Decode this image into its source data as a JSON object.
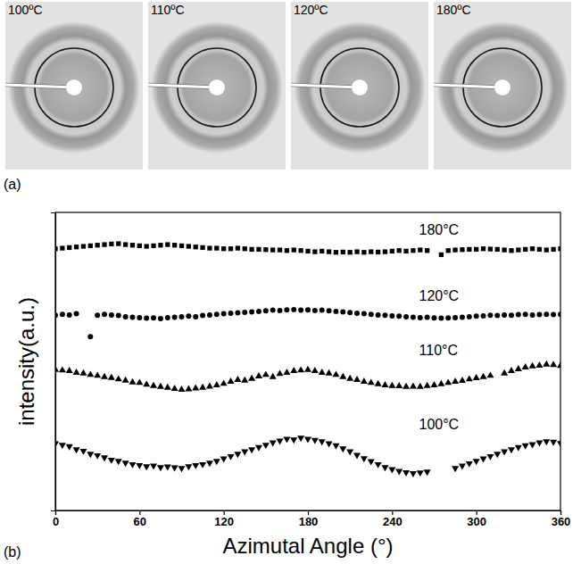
{
  "panels": [
    {
      "label": "(a)",
      "images": [
        "100ºC",
        "110ºC",
        "120ºC",
        "180ºC"
      ]
    },
    {
      "label": "(b)"
    }
  ],
  "chart_data": {
    "type": "scatter",
    "xlabel": "Azimutal Angle (°)",
    "ylabel": "intensity(a.u.)",
    "xlim": [
      0,
      360
    ],
    "xticks": [
      0,
      60,
      120,
      180,
      240,
      300,
      360
    ],
    "ylim": [
      0,
      10
    ],
    "tick_labels": "x",
    "grid": false,
    "x": [
      0,
      5,
      10,
      15,
      20,
      25,
      30,
      35,
      40,
      45,
      50,
      55,
      60,
      65,
      70,
      75,
      80,
      85,
      90,
      95,
      100,
      105,
      110,
      115,
      120,
      125,
      130,
      135,
      140,
      145,
      150,
      155,
      160,
      165,
      170,
      175,
      180,
      185,
      190,
      195,
      200,
      205,
      210,
      215,
      220,
      225,
      230,
      235,
      240,
      245,
      250,
      255,
      260,
      265,
      270,
      275,
      280,
      285,
      290,
      295,
      300,
      305,
      310,
      315,
      320,
      325,
      330,
      335,
      340,
      345,
      350,
      355,
      360
    ],
    "series": [
      {
        "name": "180°C",
        "color": "#000000",
        "marker": "square",
        "values": [
          8.78,
          8.8,
          8.82,
          8.84,
          8.86,
          8.88,
          8.9,
          8.92,
          8.94,
          8.95,
          8.92,
          8.9,
          8.88,
          8.86,
          8.88,
          8.9,
          8.92,
          8.9,
          8.88,
          8.86,
          8.84,
          8.82,
          8.8,
          8.8,
          8.78,
          8.78,
          8.8,
          8.78,
          8.76,
          8.76,
          8.75,
          8.74,
          8.74,
          8.72,
          8.74,
          8.72,
          8.7,
          8.68,
          8.7,
          8.68,
          8.66,
          8.67,
          8.66,
          8.68,
          8.66,
          8.68,
          8.67,
          8.68,
          8.7,
          8.72,
          8.7,
          8.72,
          8.74,
          8.72,
          null,
          8.58,
          8.72,
          8.74,
          8.75,
          8.76,
          8.76,
          8.78,
          8.77,
          8.76,
          8.74,
          8.72,
          8.74,
          8.76,
          8.78,
          8.76,
          8.74,
          8.76,
          8.78
        ]
      },
      {
        "name": "120°C",
        "color": "#000000",
        "marker": "circle",
        "values": [
          6.55,
          6.58,
          6.56,
          6.6,
          null,
          5.83,
          6.55,
          6.58,
          6.56,
          6.54,
          6.5,
          6.48,
          6.47,
          6.45,
          6.46,
          6.44,
          6.47,
          6.48,
          6.5,
          6.52,
          6.5,
          6.54,
          6.56,
          6.58,
          6.6,
          6.62,
          6.63,
          6.65,
          6.66,
          6.68,
          6.7,
          6.72,
          6.71,
          6.73,
          6.74,
          6.72,
          6.73,
          6.71,
          6.72,
          6.7,
          6.68,
          6.66,
          6.64,
          6.62,
          6.6,
          6.58,
          6.56,
          6.55,
          6.53,
          6.52,
          6.5,
          6.48,
          6.47,
          6.48,
          6.46,
          6.45,
          6.46,
          6.47,
          6.48,
          6.5,
          6.52,
          6.53,
          6.55,
          6.54,
          6.56,
          6.55,
          6.57,
          6.58,
          6.56,
          6.57,
          6.58,
          6.57,
          6.58
        ]
      },
      {
        "name": "110°C",
        "color": "#000000",
        "marker": "triangle-up",
        "values": [
          4.72,
          4.7,
          4.68,
          4.62,
          4.6,
          4.55,
          4.52,
          4.48,
          4.45,
          4.4,
          4.36,
          4.3,
          4.28,
          4.22,
          4.18,
          4.15,
          4.12,
          4.08,
          4.05,
          4.07,
          4.1,
          4.12,
          4.16,
          4.2,
          4.25,
          4.32,
          4.38,
          4.36,
          4.42,
          4.5,
          4.55,
          4.48,
          4.58,
          4.62,
          4.68,
          4.7,
          4.72,
          4.68,
          4.62,
          4.6,
          4.55,
          4.48,
          4.42,
          4.38,
          4.32,
          4.28,
          4.24,
          4.2,
          4.18,
          4.17,
          4.15,
          4.16,
          4.15,
          4.18,
          4.2,
          4.24,
          4.28,
          4.32,
          4.35,
          4.4,
          4.44,
          4.48,
          4.52,
          null,
          4.6,
          4.68,
          4.74,
          4.8,
          4.84,
          4.86,
          4.9,
          4.88,
          4.85
        ]
      },
      {
        "name": "100°C",
        "color": "#000000",
        "marker": "triangle-down",
        "values": [
          2.25,
          2.2,
          2.15,
          2.05,
          2.0,
          1.9,
          1.85,
          1.78,
          1.7,
          1.66,
          1.6,
          1.55,
          1.52,
          1.48,
          1.5,
          1.45,
          1.47,
          1.44,
          1.42,
          1.48,
          1.52,
          1.55,
          1.6,
          1.66,
          1.74,
          1.82,
          1.9,
          1.98,
          2.05,
          2.12,
          2.2,
          2.28,
          2.34,
          2.4,
          2.38,
          2.44,
          2.4,
          2.36,
          2.32,
          2.25,
          2.18,
          2.08,
          1.98,
          1.86,
          1.75,
          1.65,
          1.55,
          1.45,
          1.38,
          1.32,
          1.28,
          1.25,
          1.27,
          1.3,
          null,
          null,
          null,
          1.42,
          1.5,
          1.58,
          1.66,
          1.74,
          1.82,
          1.9,
          1.98,
          2.05,
          2.12,
          2.18,
          2.22,
          2.28,
          2.32,
          2.3,
          2.26
        ]
      }
    ]
  }
}
